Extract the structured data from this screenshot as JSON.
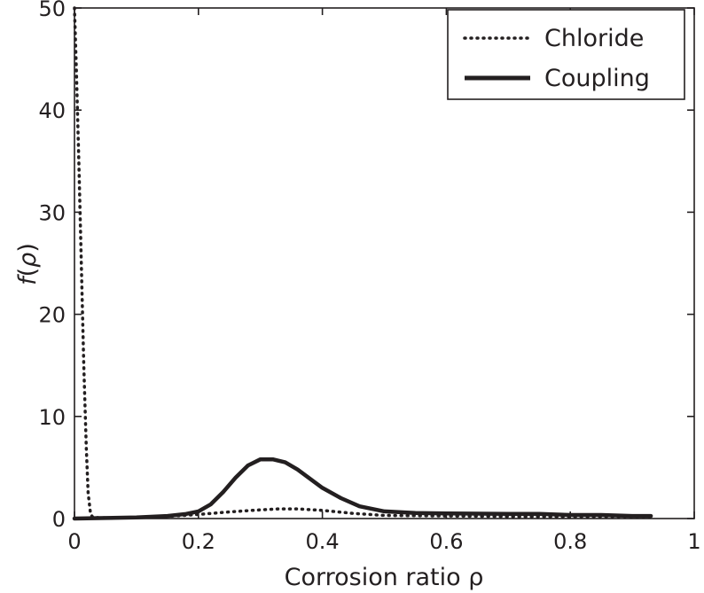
{
  "chart_data": {
    "type": "line",
    "title": "",
    "xlabel": "Corrosion ratio ρ",
    "ylabel_prefix": "f",
    "ylabel_open": "(",
    "ylabel_symbol": "ρ",
    "ylabel_close": ")",
    "xlim": [
      0,
      1
    ],
    "ylim": [
      0,
      50
    ],
    "xticks": [
      0,
      0.2,
      0.4,
      0.6,
      0.8,
      1
    ],
    "xtick_labels": [
      "0",
      "0.2",
      "0.4",
      "0.6",
      "0.8",
      "1"
    ],
    "yticks": [
      0,
      10,
      20,
      30,
      40,
      50
    ],
    "ytick_labels": [
      "0",
      "10",
      "20",
      "30",
      "40",
      "50"
    ],
    "grid": false,
    "legend_position": "top-right",
    "series": [
      {
        "name": "Chloride",
        "style": "dotted",
        "color": "#231f20",
        "points": [
          [
            0.0,
            50
          ],
          [
            0.003,
            44
          ],
          [
            0.007,
            35
          ],
          [
            0.011,
            25
          ],
          [
            0.015,
            15
          ],
          [
            0.019,
            7
          ],
          [
            0.022,
            2.5
          ],
          [
            0.026,
            0.4
          ],
          [
            0.03,
            0.1
          ],
          [
            0.06,
            0.05
          ],
          [
            0.1,
            0.1
          ],
          [
            0.15,
            0.2
          ],
          [
            0.2,
            0.4
          ],
          [
            0.25,
            0.65
          ],
          [
            0.3,
            0.85
          ],
          [
            0.33,
            0.95
          ],
          [
            0.36,
            0.95
          ],
          [
            0.4,
            0.8
          ],
          [
            0.45,
            0.5
          ],
          [
            0.5,
            0.3
          ],
          [
            0.6,
            0.25
          ],
          [
            0.7,
            0.2
          ],
          [
            0.8,
            0.2
          ],
          [
            0.9,
            0.2
          ],
          [
            0.93,
            0.2
          ]
        ]
      },
      {
        "name": "Coupling",
        "style": "solid",
        "color": "#231f20",
        "points": [
          [
            0.0,
            0.0
          ],
          [
            0.05,
            0.05
          ],
          [
            0.1,
            0.1
          ],
          [
            0.15,
            0.25
          ],
          [
            0.18,
            0.45
          ],
          [
            0.2,
            0.7
          ],
          [
            0.22,
            1.4
          ],
          [
            0.24,
            2.6
          ],
          [
            0.26,
            4.0
          ],
          [
            0.28,
            5.2
          ],
          [
            0.3,
            5.8
          ],
          [
            0.32,
            5.8
          ],
          [
            0.34,
            5.5
          ],
          [
            0.36,
            4.8
          ],
          [
            0.38,
            3.9
          ],
          [
            0.4,
            3.0
          ],
          [
            0.43,
            2.0
          ],
          [
            0.46,
            1.2
          ],
          [
            0.5,
            0.7
          ],
          [
            0.55,
            0.55
          ],
          [
            0.6,
            0.5
          ],
          [
            0.7,
            0.45
          ],
          [
            0.75,
            0.45
          ],
          [
            0.8,
            0.35
          ],
          [
            0.85,
            0.35
          ],
          [
            0.9,
            0.25
          ],
          [
            0.93,
            0.25
          ]
        ]
      }
    ]
  }
}
